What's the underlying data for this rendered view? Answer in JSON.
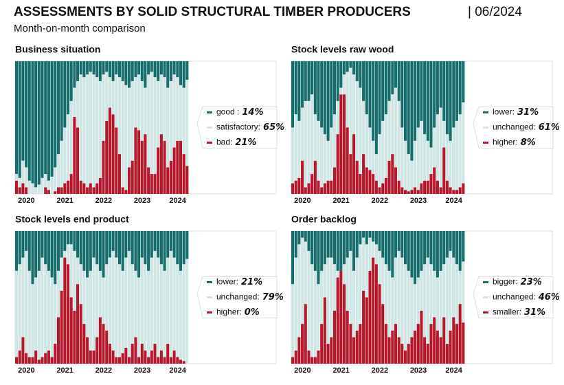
{
  "title": "ASSESSMENTS BY SOLID STRUCTURAL TIMBER PRODUCERS",
  "date": "| 06/2024",
  "subtitle": "Month-on-month comparison",
  "chart_data": [
    {
      "type": "stacked-bar",
      "title": "Business situation",
      "ylim": [
        0,
        100
      ],
      "categories": [
        null,
        null,
        null,
        "2020",
        null,
        null,
        null,
        null,
        null,
        null,
        null,
        null,
        null,
        null,
        null,
        "2021",
        null,
        null,
        null,
        null,
        null,
        null,
        null,
        null,
        null,
        null,
        null,
        "2022",
        null,
        null,
        null,
        null,
        null,
        null,
        null,
        null,
        null,
        null,
        null,
        "2023",
        null,
        null,
        null,
        null,
        null,
        null,
        null,
        null,
        null,
        null,
        "2024",
        null,
        null,
        null
      ],
      "series": [
        {
          "name": "good :",
          "color": "#166e6c",
          "legend_label": "14%",
          "values": [
            85,
            88,
            75,
            80,
            90,
            92,
            95,
            93,
            88,
            85,
            90,
            87,
            80,
            70,
            60,
            50,
            40,
            30,
            20,
            15,
            10,
            12,
            10,
            8,
            10,
            12,
            15,
            10,
            8,
            12,
            15,
            10,
            12,
            15,
            18,
            20,
            15,
            12,
            10,
            15,
            20,
            10,
            8,
            12,
            15,
            10,
            12,
            20,
            15,
            10,
            12,
            18,
            20,
            14
          ]
        },
        {
          "name": "satisfactory:",
          "color": "#cfe6e4",
          "legend_label": "65%",
          "values": [
            5,
            7,
            17,
            15,
            10,
            8,
            5,
            7,
            12,
            10,
            7,
            13,
            18,
            25,
            35,
            42,
            50,
            55,
            22,
            35,
            80,
            80,
            85,
            84,
            85,
            80,
            73,
            50,
            37,
            23,
            25,
            40,
            58,
            80,
            79,
            60,
            60,
            38,
            42,
            45,
            35,
            70,
            77,
            73,
            50,
            45,
            48,
            60,
            60,
            55,
            48,
            42,
            50,
            65
          ]
        },
        {
          "name": "bad:",
          "color": "#b5182c",
          "legend_label": "21%",
          "values": [
            10,
            5,
            8,
            5,
            0,
            0,
            0,
            0,
            0,
            5,
            3,
            0,
            2,
            5,
            5,
            8,
            10,
            15,
            58,
            50,
            10,
            8,
            5,
            8,
            5,
            8,
            12,
            40,
            55,
            65,
            60,
            50,
            30,
            5,
            3,
            20,
            25,
            50,
            48,
            40,
            45,
            20,
            15,
            15,
            35,
            45,
            40,
            20,
            25,
            35,
            40,
            40,
            30,
            21
          ]
        }
      ]
    },
    {
      "type": "stacked-bar",
      "title": "Stock levels raw wood",
      "ylim": [
        0,
        100
      ],
      "categories": [
        null,
        null,
        null,
        "2020",
        null,
        null,
        null,
        null,
        null,
        null,
        null,
        null,
        null,
        null,
        null,
        "2021",
        null,
        null,
        null,
        null,
        null,
        null,
        null,
        null,
        null,
        null,
        null,
        "2022",
        null,
        null,
        null,
        null,
        null,
        null,
        null,
        null,
        null,
        null,
        null,
        "2023",
        null,
        null,
        null,
        null,
        null,
        null,
        null,
        null,
        null,
        null,
        "2024",
        null,
        null,
        null
      ],
      "series": [
        {
          "name": "lower:",
          "color": "#166e6c",
          "legend_label": "31%",
          "values": [
            50,
            40,
            45,
            35,
            30,
            30,
            25,
            40,
            45,
            50,
            55,
            60,
            50,
            40,
            30,
            20,
            10,
            8,
            5,
            10,
            15,
            20,
            30,
            40,
            50,
            60,
            70,
            55,
            45,
            40,
            30,
            25,
            20,
            30,
            50,
            60,
            70,
            75,
            60,
            50,
            45,
            55,
            60,
            65,
            50,
            40,
            35,
            45,
            55,
            60,
            50,
            45,
            40,
            31
          ]
        },
        {
          "name": "unchanged:",
          "color": "#cfe6e4",
          "legend_label": "61%",
          "values": [
            42,
            50,
            43,
            40,
            65,
            62,
            60,
            35,
            45,
            45,
            37,
            30,
            40,
            40,
            25,
            5,
            15,
            42,
            65,
            45,
            60,
            65,
            40,
            40,
            32,
            25,
            20,
            40,
            47,
            48,
            45,
            45,
            60,
            60,
            45,
            37,
            28,
            22,
            35,
            47,
            47,
            35,
            30,
            20,
            30,
            50,
            60,
            20,
            35,
            35,
            47,
            52,
            55,
            61
          ]
        },
        {
          "name": "higher:",
          "color": "#b5182c",
          "legend_label": "8%",
          "values": [
            8,
            10,
            12,
            25,
            5,
            8,
            15,
            25,
            10,
            5,
            8,
            10,
            10,
            20,
            45,
            75,
            75,
            50,
            30,
            45,
            25,
            15,
            30,
            20,
            18,
            15,
            10,
            5,
            8,
            12,
            25,
            30,
            20,
            10,
            5,
            3,
            2,
            3,
            5,
            3,
            8,
            10,
            10,
            15,
            20,
            10,
            5,
            35,
            10,
            5,
            3,
            3,
            5,
            8
          ]
        }
      ]
    },
    {
      "type": "stacked-bar",
      "title": "Stock levels end product",
      "ylim": [
        0,
        100
      ],
      "categories": [
        null,
        null,
        null,
        "2020",
        null,
        null,
        null,
        null,
        null,
        null,
        null,
        null,
        null,
        null,
        null,
        "2021",
        null,
        null,
        null,
        null,
        null,
        null,
        null,
        null,
        null,
        null,
        null,
        "2022",
        null,
        null,
        null,
        null,
        null,
        null,
        null,
        null,
        null,
        null,
        null,
        "2023",
        null,
        null,
        null,
        null,
        null,
        null,
        null,
        null,
        null,
        null,
        "2024",
        null,
        null,
        null
      ],
      "series": [
        {
          "name": "lower:",
          "color": "#166e6c",
          "legend_label": "21%",
          "values": [
            30,
            25,
            20,
            15,
            30,
            40,
            35,
            30,
            20,
            25,
            30,
            35,
            40,
            30,
            20,
            15,
            10,
            10,
            15,
            20,
            25,
            30,
            35,
            30,
            20,
            25,
            30,
            35,
            25,
            20,
            15,
            20,
            25,
            30,
            20,
            15,
            25,
            30,
            35,
            20,
            25,
            30,
            20,
            15,
            20,
            25,
            30,
            20,
            15,
            20,
            25,
            30,
            25,
            21
          ]
        },
        {
          "name": "unchanged:",
          "color": "#cfe6e4",
          "legend_label": "79%",
          "values": [
            65,
            65,
            60,
            77,
            65,
            55,
            55,
            67,
            75,
            67,
            60,
            60,
            45,
            35,
            25,
            5,
            15,
            40,
            45,
            20,
            30,
            40,
            45,
            60,
            70,
            55,
            35,
            35,
            50,
            65,
            75,
            75,
            70,
            62,
            68,
            80,
            60,
            50,
            60,
            65,
            65,
            65,
            70,
            70,
            75,
            65,
            65,
            65,
            80,
            70,
            70,
            67,
            73,
            79
          ]
        },
        {
          "name": "higher:",
          "color": "#b5182c",
          "legend_label": "0%",
          "values": [
            5,
            10,
            20,
            8,
            5,
            5,
            10,
            3,
            5,
            8,
            10,
            5,
            15,
            35,
            55,
            80,
            75,
            50,
            40,
            60,
            45,
            30,
            20,
            10,
            10,
            20,
            35,
            30,
            25,
            15,
            10,
            5,
            5,
            8,
            12,
            5,
            15,
            20,
            5,
            15,
            10,
            5,
            10,
            15,
            5,
            10,
            5,
            15,
            5,
            10,
            5,
            3,
            2,
            0
          ]
        }
      ]
    },
    {
      "type": "stacked-bar",
      "title": "Order backlog",
      "ylim": [
        0,
        100
      ],
      "categories": [
        null,
        null,
        null,
        "2020",
        null,
        null,
        null,
        null,
        null,
        null,
        null,
        null,
        null,
        null,
        null,
        "2021",
        null,
        null,
        null,
        null,
        null,
        null,
        null,
        null,
        null,
        null,
        null,
        "2022",
        null,
        null,
        null,
        null,
        null,
        null,
        null,
        null,
        null,
        null,
        null,
        "2023",
        null,
        null,
        null,
        null,
        null,
        null,
        null,
        null,
        null,
        null,
        "2024",
        null,
        null,
        null
      ],
      "series": [
        {
          "name": "bigger:",
          "color": "#166e6c",
          "legend_label": "23%",
          "values": [
            40,
            20,
            10,
            5,
            8,
            15,
            25,
            30,
            40,
            30,
            25,
            20,
            20,
            25,
            30,
            30,
            25,
            20,
            15,
            30,
            20,
            10,
            5,
            10,
            5,
            8,
            10,
            15,
            20,
            25,
            30,
            35,
            20,
            15,
            20,
            25,
            30,
            35,
            40,
            35,
            30,
            25,
            20,
            25,
            30,
            35,
            30,
            25,
            20,
            15,
            20,
            25,
            30,
            23
          ]
        },
        {
          "name": "unchanged:",
          "color": "#cfe6e4",
          "legend_label": "46%",
          "values": [
            55,
            70,
            70,
            65,
            47,
            75,
            70,
            65,
            50,
            40,
            25,
            65,
            60,
            35,
            5,
            0,
            15,
            40,
            55,
            50,
            55,
            60,
            40,
            40,
            25,
            12,
            15,
            25,
            35,
            45,
            50,
            40,
            50,
            65,
            65,
            65,
            55,
            45,
            35,
            35,
            30,
            55,
            65,
            45,
            35,
            40,
            50,
            40,
            65,
            60,
            45,
            45,
            25,
            46
          ]
        },
        {
          "name": "smaller:",
          "color": "#b5182c",
          "legend_label": "31%",
          "values": [
            5,
            10,
            20,
            30,
            45,
            10,
            5,
            5,
            10,
            30,
            50,
            15,
            20,
            40,
            65,
            70,
            60,
            40,
            30,
            20,
            25,
            30,
            55,
            50,
            70,
            80,
            75,
            60,
            45,
            30,
            20,
            25,
            30,
            20,
            15,
            10,
            15,
            20,
            25,
            30,
            40,
            20,
            15,
            30,
            35,
            25,
            20,
            35,
            15,
            25,
            35,
            30,
            45,
            31
          ]
        }
      ]
    }
  ]
}
